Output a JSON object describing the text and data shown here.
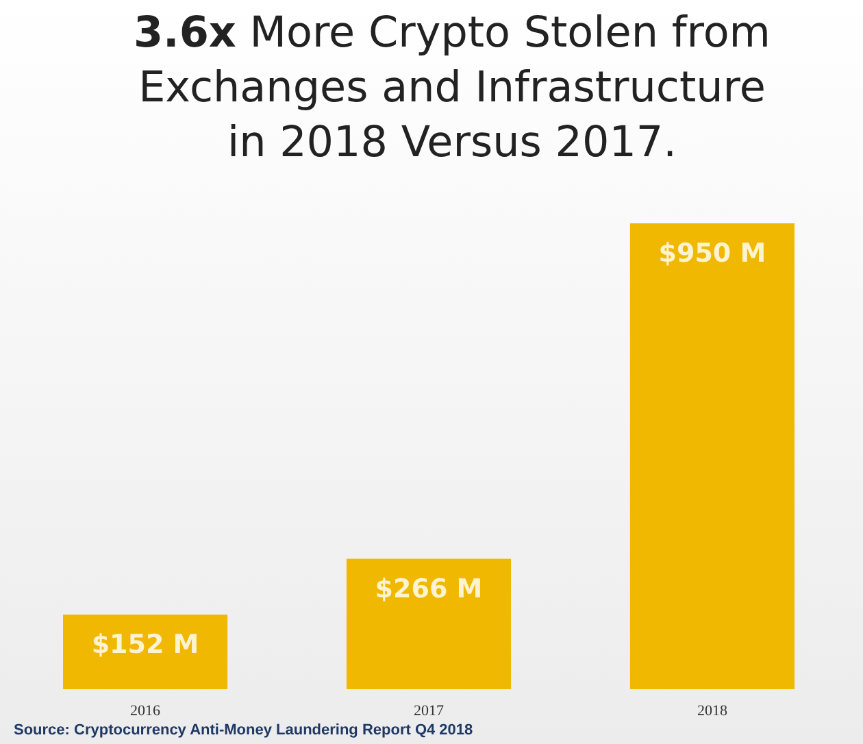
{
  "chart_data": {
    "type": "bar",
    "title": "3.6x More Crypto Stolen from Exchanges and Infrastructure in 2018 Versus 2017.",
    "categories": [
      "2016",
      "2017",
      "2018"
    ],
    "values": [
      152,
      266,
      950
    ],
    "value_labels": [
      "$152 M",
      "$266 M",
      "$950 M"
    ],
    "color": "#f0b800",
    "annotations": [
      "Source: Cryptocurrency Anti-Money Laundering Report Q4 2018"
    ]
  }
}
